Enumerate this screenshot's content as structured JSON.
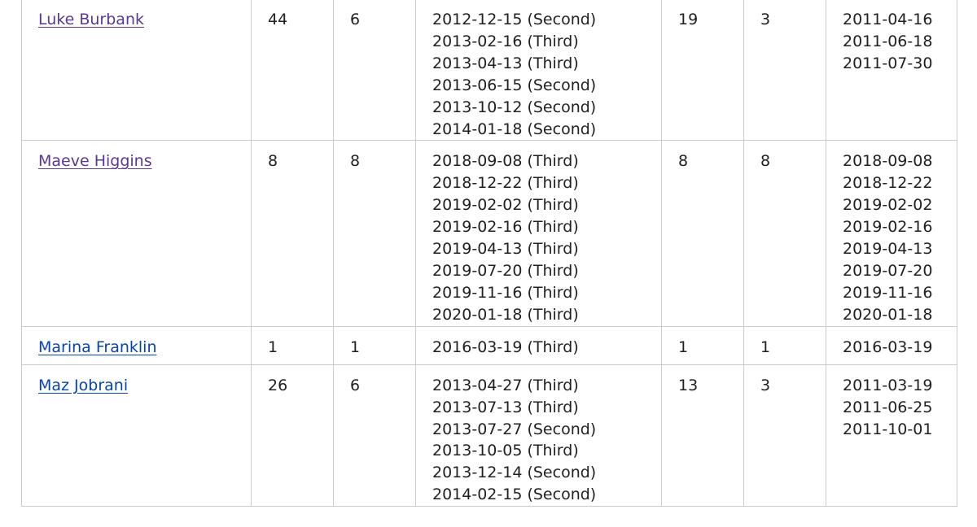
{
  "table": {
    "rows": [
      {
        "name": "Luke Burbank",
        "link_state": "visited",
        "count_a": "44",
        "count_b": "6",
        "dates_a": [
          "2012-12-15 (Second)",
          "2013-02-16 (Third)",
          "2013-04-13 (Third)",
          "2013-06-15 (Second)",
          "2013-10-12 (Second)",
          "2014-01-18 (Second)"
        ],
        "count_c": "19",
        "count_d": "3",
        "dates_b": [
          "2011-04-16",
          "2011-06-18",
          "2011-07-30"
        ]
      },
      {
        "name": "Maeve Higgins",
        "link_state": "visited",
        "count_a": "8",
        "count_b": "8",
        "dates_a": [
          "2018-09-08 (Third)",
          "2018-12-22 (Third)",
          "2019-02-02 (Third)",
          "2019-02-16 (Third)",
          "2019-04-13 (Third)",
          "2019-07-20 (Third)",
          "2019-11-16 (Third)",
          "2020-01-18 (Third)"
        ],
        "count_c": "8",
        "count_d": "8",
        "dates_b": [
          "2018-09-08",
          "2018-12-22",
          "2019-02-02",
          "2019-02-16",
          "2019-04-13",
          "2019-07-20",
          "2019-11-16",
          "2020-01-18"
        ]
      },
      {
        "name": "Marina Franklin",
        "link_state": "unvisited",
        "count_a": "1",
        "count_b": "1",
        "dates_a": [
          "2016-03-19 (Third)"
        ],
        "count_c": "1",
        "count_d": "1",
        "dates_b": [
          "2016-03-19"
        ]
      },
      {
        "name": "Maz Jobrani",
        "link_state": "unvisited",
        "count_a": "26",
        "count_b": "6",
        "dates_a": [
          "2013-04-27 (Third)",
          "2013-07-13 (Third)",
          "2013-07-27 (Second)",
          "2013-10-05 (Third)",
          "2013-12-14 (Second)",
          "2014-02-15 (Second)"
        ],
        "count_c": "13",
        "count_d": "3",
        "dates_b": [
          "2011-03-19",
          "2011-06-25",
          "2011-10-01"
        ]
      }
    ]
  }
}
